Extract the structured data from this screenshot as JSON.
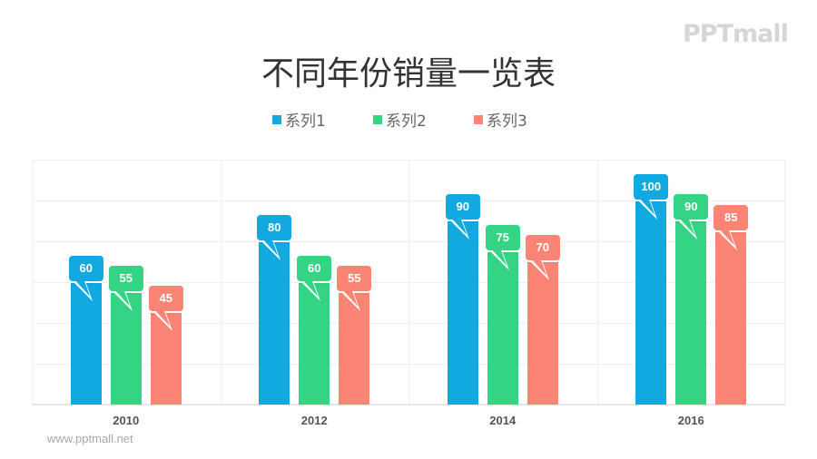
{
  "logo": {
    "text": "PPTmall"
  },
  "watermark": {
    "text": "www.pptmall.net"
  },
  "chart_data": {
    "type": "bar",
    "title": "不同年份销量一览表",
    "categories": [
      "2010",
      "2012",
      "2014",
      "2016"
    ],
    "series": [
      {
        "name": "系列1",
        "color": "#12a9e1",
        "values": [
          60,
          80,
          90,
          100
        ]
      },
      {
        "name": "系列2",
        "color": "#35d384",
        "values": [
          55,
          60,
          75,
          90
        ]
      },
      {
        "name": "系列3",
        "color": "#fb8475",
        "values": [
          45,
          55,
          70,
          85
        ]
      }
    ],
    "xlabel": "",
    "ylabel": "",
    "ylim": [
      0,
      120
    ],
    "grid": true,
    "y_axis_visible": false,
    "legend_position": "top",
    "data_labels": "callout"
  }
}
